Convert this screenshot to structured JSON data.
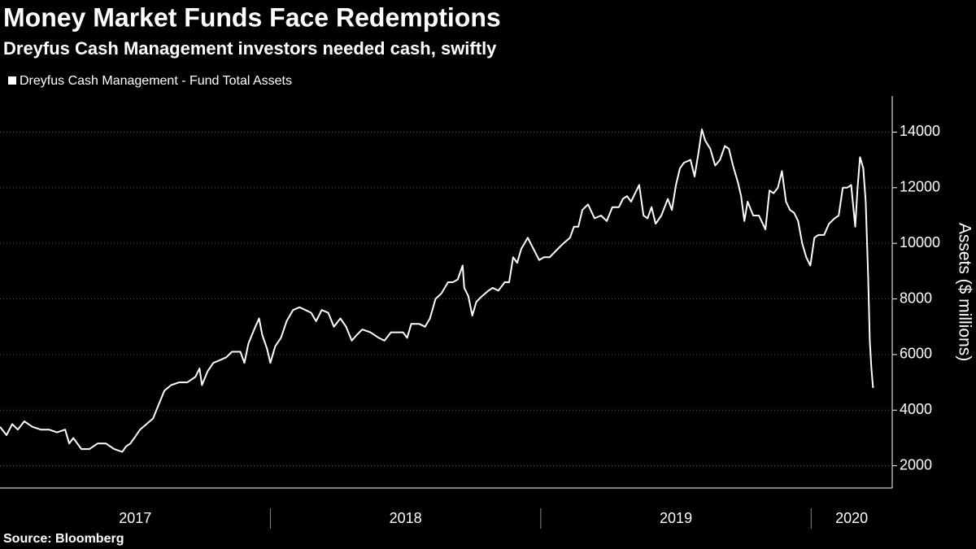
{
  "chart_data": {
    "type": "line",
    "title": "Money Market Funds Face Redemptions",
    "subtitle": "Dreyfus Cash Management investors needed cash, swiftly",
    "source": "Source: Bloomberg",
    "y_label": "Assets ($ millions)",
    "grid": true,
    "xlim": [
      2017.0,
      2020.3
    ],
    "xticks": [
      2017,
      2018,
      2019,
      2020
    ],
    "ylim": [
      1200,
      15300
    ],
    "yticks": [
      2000,
      4000,
      6000,
      8000,
      10000,
      12000,
      14000
    ],
    "series": [
      {
        "name": "Dreyfus Cash Management - Fund Total Assets",
        "color": "#ffffff",
        "x": [
          2017.0,
          2017.024,
          2017.045,
          2017.066,
          2017.09,
          2017.12,
          2017.151,
          2017.181,
          2017.211,
          2017.241,
          2017.256,
          2017.271,
          2017.301,
          2017.331,
          2017.361,
          2017.392,
          2017.422,
          2017.452,
          2017.467,
          2017.482,
          2017.497,
          2017.518,
          2017.542,
          2017.566,
          2017.587,
          2017.608,
          2017.633,
          2017.663,
          2017.693,
          2017.723,
          2017.738,
          2017.747,
          2017.768,
          2017.789,
          2017.813,
          2017.837,
          2017.858,
          2017.889,
          2017.904,
          2017.919,
          2017.94,
          2017.958,
          2017.97,
          2017.988,
          2018.0,
          2018.018,
          2018.039,
          2018.06,
          2018.084,
          2018.108,
          2018.13,
          2018.151,
          2018.169,
          2018.19,
          2018.214,
          2018.235,
          2018.259,
          2018.28,
          2018.301,
          2018.319,
          2018.34,
          2018.37,
          2018.401,
          2018.422,
          2018.446,
          2018.47,
          2018.491,
          2018.506,
          2018.521,
          2018.551,
          2018.572,
          2018.59,
          2018.611,
          2018.633,
          2018.657,
          2018.675,
          2018.693,
          2018.711,
          2018.717,
          2018.732,
          2018.747,
          2018.762,
          2018.783,
          2018.807,
          2018.822,
          2018.843,
          2018.867,
          2018.883,
          2018.898,
          2018.913,
          2018.928,
          2018.952,
          2018.973,
          2018.994,
          2019.012,
          2019.033,
          2019.063,
          2019.084,
          2019.108,
          2019.123,
          2019.139,
          2019.154,
          2019.175,
          2019.199,
          2019.223,
          2019.244,
          2019.265,
          2019.289,
          2019.304,
          2019.319,
          2019.334,
          2019.349,
          2019.364,
          2019.38,
          2019.395,
          2019.41,
          2019.425,
          2019.446,
          2019.47,
          2019.485,
          2019.5,
          2019.515,
          2019.53,
          2019.554,
          2019.569,
          2019.584,
          2019.596,
          2019.608,
          2019.627,
          2019.645,
          2019.663,
          2019.681,
          2019.696,
          2019.711,
          2019.729,
          2019.741,
          2019.753,
          2019.765,
          2019.786,
          2019.807,
          2019.831,
          2019.846,
          2019.861,
          2019.877,
          2019.892,
          2019.907,
          2019.922,
          2019.937,
          2019.952,
          2019.967,
          2019.982,
          2019.997,
          2020.012,
          2020.027,
          2020.048,
          2020.066,
          2020.087,
          2020.102,
          2020.117,
          2020.133,
          2020.148,
          2020.163,
          2020.172,
          2020.181,
          2020.193,
          2020.202,
          2020.211,
          2020.217,
          2020.223,
          2020.229
        ],
        "values": [
          3400,
          3100,
          3500,
          3300,
          3600,
          3400,
          3300,
          3300,
          3200,
          3300,
          2800,
          3000,
          2600,
          2600,
          2800,
          2800,
          2600,
          2500,
          2700,
          2800,
          3000,
          3300,
          3500,
          3700,
          4200,
          4700,
          4900,
          5000,
          5000,
          5200,
          5500,
          4900,
          5400,
          5700,
          5800,
          5900,
          6100,
          6100,
          5700,
          6400,
          6900,
          7300,
          6700,
          6200,
          5700,
          6300,
          6600,
          7200,
          7600,
          7700,
          7600,
          7500,
          7200,
          7600,
          7500,
          7000,
          7300,
          7000,
          6500,
          6700,
          6900,
          6800,
          6600,
          6500,
          6800,
          6800,
          6800,
          6600,
          7100,
          7100,
          7000,
          7300,
          8000,
          8200,
          8600,
          8600,
          8700,
          9200,
          8400,
          8100,
          7400,
          7900,
          8100,
          8300,
          8400,
          8300,
          8600,
          8600,
          9500,
          9300,
          9800,
          10200,
          9800,
          9400,
          9500,
          9500,
          9800,
          10000,
          10200,
          10600,
          10600,
          11200,
          11400,
          10900,
          11000,
          10800,
          11300,
          11300,
          11600,
          11700,
          11500,
          11800,
          12100,
          11000,
          10900,
          11300,
          10700,
          11000,
          11600,
          11200,
          12100,
          12700,
          12900,
          13000,
          12400,
          13300,
          14100,
          13700,
          13400,
          12800,
          13000,
          13500,
          13400,
          12800,
          12200,
          11700,
          10800,
          11500,
          11000,
          11000,
          10500,
          11900,
          11800,
          12000,
          12600,
          11500,
          11200,
          11100,
          10800,
          10000,
          9500,
          9200,
          10200,
          10300,
          10300,
          10700,
          10900,
          11000,
          12000,
          12000,
          12100,
          10600,
          12000,
          13100,
          12700,
          11500,
          8800,
          6500,
          5500,
          4800
        ]
      }
    ]
  }
}
